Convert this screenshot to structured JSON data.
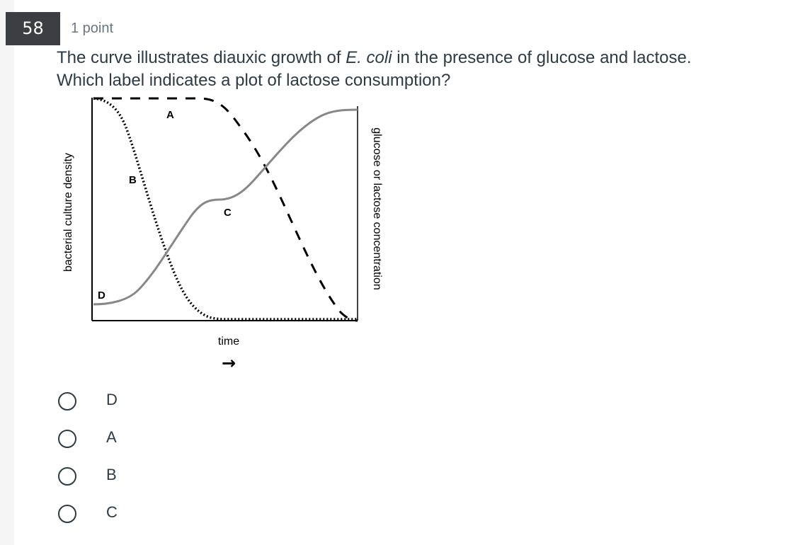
{
  "question": {
    "number": "58",
    "points": "1 point",
    "text_pre": "The curve illustrates diauxic growth of ",
    "text_italic": "E. coli",
    "text_post": " in the presence of glucose and lactose.",
    "line2": "Which label indicates a plot of lactose consumption?"
  },
  "figure": {
    "left_axis_label": "bacterial culture density",
    "right_axis_label": "glucose or lactose concentration",
    "x_label": "time",
    "x_arrow": "→",
    "curve_labels": {
      "a": "A",
      "b": "B",
      "c": "C",
      "d": "D"
    },
    "colors": {
      "growth": "#888888",
      "dashed": "#000000",
      "axes": "#000000"
    }
  },
  "answers": [
    {
      "label": "D"
    },
    {
      "label": "A"
    },
    {
      "label": "B"
    },
    {
      "label": "C"
    }
  ]
}
